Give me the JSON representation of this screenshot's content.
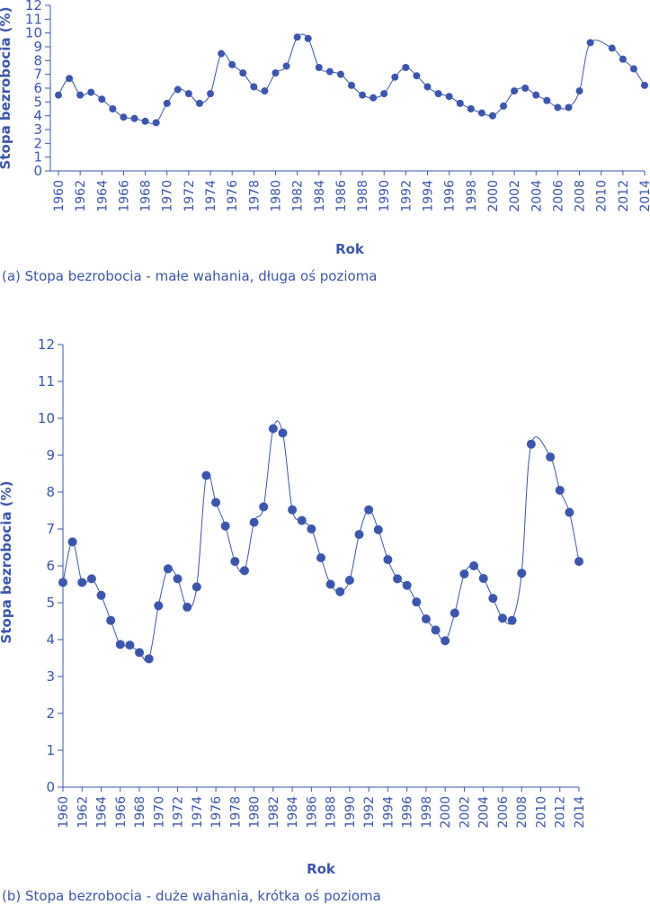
{
  "accent_color": "#3a56b0",
  "chart_data": [
    {
      "type": "line",
      "xlabel": "Rok",
      "ylabel": "Stopa bezrobocia (%)",
      "caption": "(a) Stopa bezrobocia - małe wahania, długa oś pozioma",
      "ylim": [
        0,
        12
      ],
      "yticks": [
        "0",
        "1",
        "2",
        "3",
        "4",
        "5",
        "6",
        "7",
        "8",
        "9",
        "10",
        "11",
        "12"
      ],
      "xlim": [
        1960,
        2014
      ],
      "xticks": [
        "1960",
        "1962",
        "1964",
        "1966",
        "1968",
        "1970",
        "1972",
        "1974",
        "1976",
        "1978",
        "1980",
        "1982",
        "1984",
        "1986",
        "1988",
        "1990",
        "1992",
        "1994",
        "1996",
        "1998",
        "2000",
        "2002",
        "2004",
        "2006",
        "2008",
        "2010",
        "2012",
        "2014"
      ],
      "grid": false,
      "markers": true,
      "points": [
        [
          1960,
          5.5
        ],
        [
          1961,
          6.7
        ],
        [
          1962,
          5.5
        ],
        [
          1963,
          5.7
        ],
        [
          1964,
          5.2
        ],
        [
          1965,
          4.5
        ],
        [
          1966,
          3.9
        ],
        [
          1967,
          3.8
        ],
        [
          1968,
          3.6
        ],
        [
          1969,
          3.5
        ],
        [
          1970,
          4.9
        ],
        [
          1971,
          5.9
        ],
        [
          1972,
          5.6
        ],
        [
          1973,
          4.9
        ],
        [
          1974,
          5.6
        ],
        [
          1975,
          8.5
        ],
        [
          1976,
          7.7
        ],
        [
          1977,
          7.1
        ],
        [
          1978,
          6.1
        ],
        [
          1979,
          5.8
        ],
        [
          1980,
          7.1
        ],
        [
          1981,
          7.6
        ],
        [
          1982,
          9.7
        ],
        [
          1983,
          9.6
        ],
        [
          1984,
          7.5
        ],
        [
          1985,
          7.2
        ],
        [
          1986,
          7.0
        ],
        [
          1987,
          6.2
        ],
        [
          1988,
          5.5
        ],
        [
          1989,
          5.3
        ],
        [
          1990,
          5.6
        ],
        [
          1991,
          6.8
        ],
        [
          1992,
          7.5
        ],
        [
          1993,
          6.9
        ],
        [
          1994,
          6.1
        ],
        [
          1995,
          5.6
        ],
        [
          1996,
          5.4
        ],
        [
          1997,
          4.9
        ],
        [
          1998,
          4.5
        ],
        [
          1999,
          4.2
        ],
        [
          2000,
          4.0
        ],
        [
          2001,
          4.7
        ],
        [
          2002,
          5.8
        ],
        [
          2003,
          6.0
        ],
        [
          2004,
          5.5
        ],
        [
          2005,
          5.1
        ],
        [
          2006,
          4.6
        ],
        [
          2007,
          4.6
        ],
        [
          2008,
          5.8
        ],
        [
          2009,
          9.3
        ],
        [
          2011,
          8.9
        ],
        [
          2012,
          8.1
        ],
        [
          2013,
          7.4
        ],
        [
          2014,
          6.2
        ]
      ]
    },
    {
      "type": "line",
      "xlabel": "Rok",
      "ylabel": "Stopa bezrobocia (%)",
      "caption": "(b) Stopa bezrobocia - duże wahania, krótka oś pozioma",
      "ylim": [
        0,
        12
      ],
      "yticks": [
        "0",
        "1",
        "2",
        "3",
        "4",
        "5",
        "6",
        "7",
        "8",
        "9",
        "10",
        "11",
        "12"
      ],
      "xlim": [
        1960,
        2014
      ],
      "xticks": [
        "1960",
        "1962",
        "1964",
        "1966",
        "1968",
        "1970",
        "1972",
        "1974",
        "1976",
        "1978",
        "1980",
        "1982",
        "1984",
        "1986",
        "1988",
        "1990",
        "1992",
        "1994",
        "1996",
        "1998",
        "2000",
        "2002",
        "2004",
        "2006",
        "2008",
        "2010",
        "2012",
        "2014"
      ],
      "grid": false,
      "markers": true,
      "points": [
        [
          1960,
          5.55
        ],
        [
          1961,
          6.65
        ],
        [
          1962,
          5.55
        ],
        [
          1963,
          5.65
        ],
        [
          1964,
          5.2
        ],
        [
          1965,
          4.52
        ],
        [
          1966,
          3.87
        ],
        [
          1967,
          3.85
        ],
        [
          1968,
          3.65
        ],
        [
          1969,
          3.48
        ],
        [
          1970,
          4.92
        ],
        [
          1971,
          5.92
        ],
        [
          1972,
          5.65
        ],
        [
          1973,
          4.88
        ],
        [
          1974,
          5.43
        ],
        [
          1975,
          8.45
        ],
        [
          1976,
          7.72
        ],
        [
          1977,
          7.08
        ],
        [
          1978,
          6.12
        ],
        [
          1979,
          5.87
        ],
        [
          1980,
          7.18
        ],
        [
          1981,
          7.6
        ],
        [
          1982,
          9.72
        ],
        [
          1983,
          9.6
        ],
        [
          1984,
          7.52
        ],
        [
          1985,
          7.23
        ],
        [
          1986,
          7.0
        ],
        [
          1987,
          6.22
        ],
        [
          1988,
          5.5
        ],
        [
          1989,
          5.3
        ],
        [
          1990,
          5.61
        ],
        [
          1991,
          6.85
        ],
        [
          1992,
          7.52
        ],
        [
          1993,
          6.98
        ],
        [
          1994,
          6.17
        ],
        [
          1995,
          5.65
        ],
        [
          1996,
          5.47
        ],
        [
          1997,
          5.02
        ],
        [
          1998,
          4.56
        ],
        [
          1999,
          4.26
        ],
        [
          2000,
          3.97
        ],
        [
          2001,
          4.72
        ],
        [
          2002,
          5.78
        ],
        [
          2003,
          6.0
        ],
        [
          2004,
          5.66
        ],
        [
          2005,
          5.12
        ],
        [
          2006,
          4.58
        ],
        [
          2007,
          4.52
        ],
        [
          2008,
          5.8
        ],
        [
          2009,
          9.3
        ],
        [
          2011,
          8.95
        ],
        [
          2012,
          8.05
        ],
        [
          2013,
          7.45
        ],
        [
          2014,
          6.12
        ]
      ]
    }
  ]
}
